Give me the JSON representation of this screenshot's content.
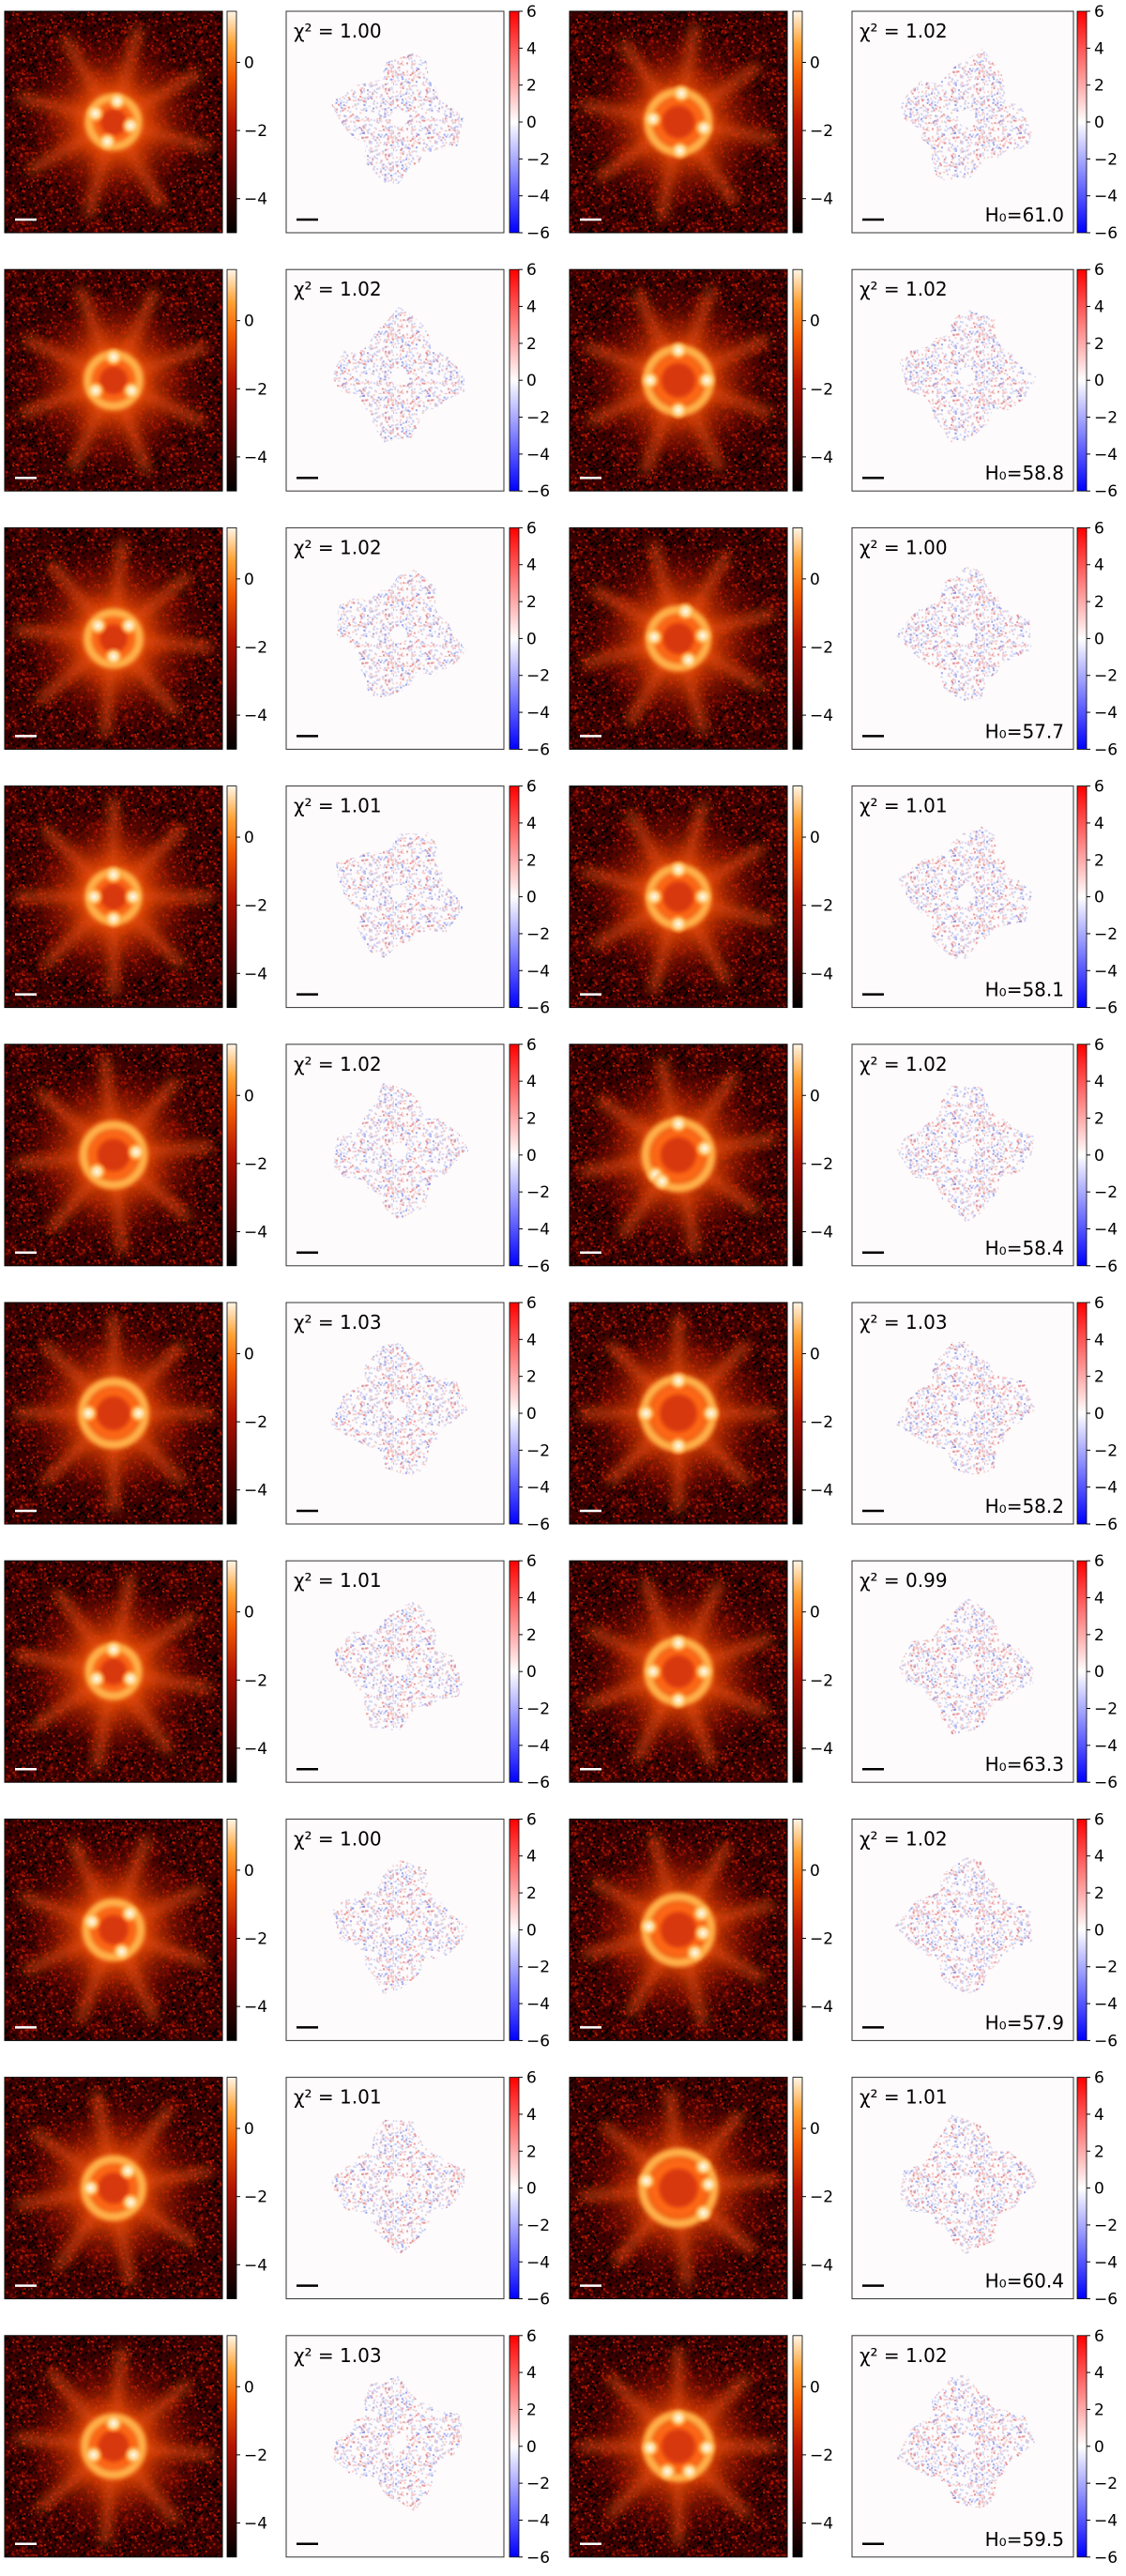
{
  "figure": {
    "scale_bar_color_light": "#ffffff",
    "scale_bar_color_dark": "#000000"
  },
  "colorbars": {
    "image": {
      "cmap": "gist_heat",
      "range": [
        -5,
        1.5
      ],
      "ticks": [
        "0",
        "−2",
        "−4"
      ],
      "tick_values": [
        0,
        -2,
        -4
      ]
    },
    "residual": {
      "cmap": "bwr",
      "range": [
        -6,
        6
      ],
      "ticks": [
        "6",
        "4",
        "2",
        "0",
        "−2",
        "−4",
        "−6"
      ],
      "tick_values": [
        6,
        4,
        2,
        0,
        -2,
        -4,
        -6
      ]
    }
  },
  "chart_data": {
    "type": "heatmap",
    "description_of_layout": "10 rows x 2 systems; each system = lensed image (log10 flux) + normalized residual map",
    "rows": [
      {
        "left": {
          "chi2_label": "χ² = 1.00",
          "chi2": 1.0,
          "ring": 0.6,
          "spots": [
            [
              -0.75,
              0.35
            ],
            [
              0.15,
              0.85
            ],
            [
              0.7,
              -0.15
            ],
            [
              -0.25,
              -0.8
            ]
          ],
          "rot": 15
        },
        "right": {
          "chi2_label": "χ² = 1.02",
          "chi2": 1.02,
          "h0_label": "H₀=61.0",
          "h0": 61.0,
          "ring": 0.8,
          "spots": [
            [
              0.1,
              0.95
            ],
            [
              -0.85,
              0.1
            ],
            [
              0.85,
              -0.2
            ],
            [
              0.05,
              -0.95
            ]
          ],
          "rot": 10
        }
      },
      {
        "left": {
          "chi2_label": "χ² = 1.02",
          "chi2": 1.02,
          "ring": 0.65,
          "spots": [
            [
              0.0,
              0.9
            ],
            [
              -0.7,
              -0.4
            ],
            [
              0.7,
              -0.4
            ]
          ],
          "rot": 25
        },
        "right": {
          "chi2_label": "χ² = 1.02",
          "chi2": 1.02,
          "h0_label": "H₀=58.8",
          "h0": 58.8,
          "ring": 0.85,
          "spots": [
            [
              0.0,
              0.95
            ],
            [
              -0.9,
              0.0
            ],
            [
              0.9,
              0.0
            ],
            [
              0.0,
              -0.95
            ]
          ],
          "rot": 20
        }
      },
      {
        "left": {
          "chi2_label": "χ² = 1.02",
          "chi2": 1.02,
          "ring": 0.65,
          "spots": [
            [
              -0.6,
              0.5
            ],
            [
              0.6,
              0.5
            ],
            [
              0.0,
              -0.7
            ]
          ],
          "rot": 5
        },
        "right": {
          "chi2_label": "χ² = 1.00",
          "chi2": 1.0,
          "h0_label": "H₀=57.7",
          "h0": 57.7,
          "ring": 0.75,
          "spots": [
            [
              0.25,
              0.95
            ],
            [
              -0.85,
              0.05
            ],
            [
              0.85,
              0.1
            ],
            [
              0.35,
              -0.75
            ]
          ],
          "rot": 30
        }
      },
      {
        "left": {
          "chi2_label": "χ² = 1.01",
          "chi2": 1.01,
          "ring": 0.6,
          "spots": [
            [
              0.0,
              0.9
            ],
            [
              -0.8,
              0.0
            ],
            [
              0.8,
              0.0
            ],
            [
              0.0,
              -0.9
            ]
          ],
          "rot": 0
        },
        "right": {
          "chi2_label": "χ² = 1.01",
          "chi2": 1.01,
          "h0_label": "H₀=58.1",
          "h0": 58.1,
          "ring": 0.75,
          "spots": [
            [
              0.0,
              0.95
            ],
            [
              -0.85,
              0.0
            ],
            [
              0.85,
              0.0
            ],
            [
              0.0,
              -0.95
            ]
          ],
          "rot": 15
        }
      },
      {
        "left": {
          "chi2_label": "χ² = 1.02",
          "chi2": 1.02,
          "ring": 0.8,
          "spots": [
            [
              0.75,
              0.1
            ],
            [
              -0.55,
              -0.55
            ]
          ],
          "rot": 40
        },
        "right": {
          "chi2_label": "χ² = 1.02",
          "chi2": 1.02,
          "h0_label": "H₀=58.4",
          "h0": 58.4,
          "ring": 0.9,
          "spots": [
            [
              0.0,
              0.95
            ],
            [
              -0.7,
              -0.6
            ],
            [
              -0.5,
              -0.8
            ],
            [
              0.8,
              0.2
            ]
          ],
          "rot": 35
        }
      },
      {
        "left": {
          "chi2_label": "χ² = 1.03",
          "chi2": 1.03,
          "ring": 0.85,
          "spots": [
            [
              -0.8,
              0.0
            ],
            [
              0.8,
              0.0
            ]
          ],
          "rot": 45
        },
        "right": {
          "chi2_label": "χ² = 1.03",
          "chi2": 1.03,
          "h0_label": "H₀=58.2",
          "h0": 58.2,
          "ring": 0.95,
          "spots": [
            [
              0.0,
              0.95
            ],
            [
              -0.95,
              0.0
            ],
            [
              0.95,
              0.0
            ],
            [
              0.0,
              -0.95
            ]
          ],
          "rot": 45
        }
      },
      {
        "left": {
          "chi2_label": "χ² = 1.01",
          "chi2": 1.01,
          "ring": 0.6,
          "spots": [
            [
              0.0,
              0.9
            ],
            [
              -0.7,
              -0.3
            ],
            [
              0.7,
              -0.3
            ]
          ],
          "rot": 10
        },
        "right": {
          "chi2_label": "χ² = 0.99",
          "chi2": 0.99,
          "h0_label": "H₀=63.3",
          "h0": 63.3,
          "ring": 0.8,
          "spots": [
            [
              0.0,
              0.95
            ],
            [
              -0.85,
              0.0
            ],
            [
              0.85,
              0.0
            ],
            [
              0.0,
              -0.95
            ]
          ],
          "rot": 25
        }
      },
      {
        "left": {
          "chi2_label": "χ² = 1.00",
          "chi2": 1.0,
          "ring": 0.7,
          "spots": [
            [
              -0.8,
              0.3
            ],
            [
              0.6,
              0.6
            ],
            [
              0.3,
              -0.8
            ]
          ],
          "rot": 20
        },
        "right": {
          "chi2_label": "χ² = 1.02",
          "chi2": 1.02,
          "h0_label": "H₀=57.9",
          "h0": 57.9,
          "ring": 0.9,
          "spots": [
            [
              -0.9,
              0.1
            ],
            [
              0.7,
              0.5
            ],
            [
              0.75,
              -0.1
            ],
            [
              0.5,
              -0.7
            ]
          ],
          "rot": 30
        }
      },
      {
        "left": {
          "chi2_label": "χ² = 1.01",
          "chi2": 1.01,
          "ring": 0.75,
          "spots": [
            [
              -0.8,
              0.0
            ],
            [
              0.5,
              0.6
            ],
            [
              0.6,
              -0.5
            ]
          ],
          "rot": 35
        },
        "right": {
          "chi2_label": "χ² = 1.01",
          "chi2": 1.01,
          "h0_label": "H₀=60.4",
          "h0": 60.4,
          "ring": 1.0,
          "spots": [
            [
              -0.9,
              0.2
            ],
            [
              0.7,
              0.6
            ],
            [
              0.85,
              0.1
            ],
            [
              0.7,
              -0.7
            ]
          ],
          "rot": 40
        }
      },
      {
        "left": {
          "chi2_label": "χ² = 1.03",
          "chi2": 1.03,
          "ring": 0.75,
          "spots": [
            [
              0.0,
              0.8
            ],
            [
              -0.7,
              -0.3
            ],
            [
              0.7,
              -0.3
            ]
          ],
          "rot": 50
        },
        "right": {
          "chi2_label": "χ² = 1.02",
          "chi2": 1.02,
          "h0_label": "H₀=59.5",
          "h0": 59.5,
          "ring": 0.85,
          "spots": [
            [
              0.0,
              0.9
            ],
            [
              -0.9,
              -0.05
            ],
            [
              0.9,
              -0.05
            ],
            [
              -0.35,
              -0.8
            ],
            [
              0.35,
              -0.8
            ]
          ],
          "rot": 45
        }
      }
    ]
  }
}
